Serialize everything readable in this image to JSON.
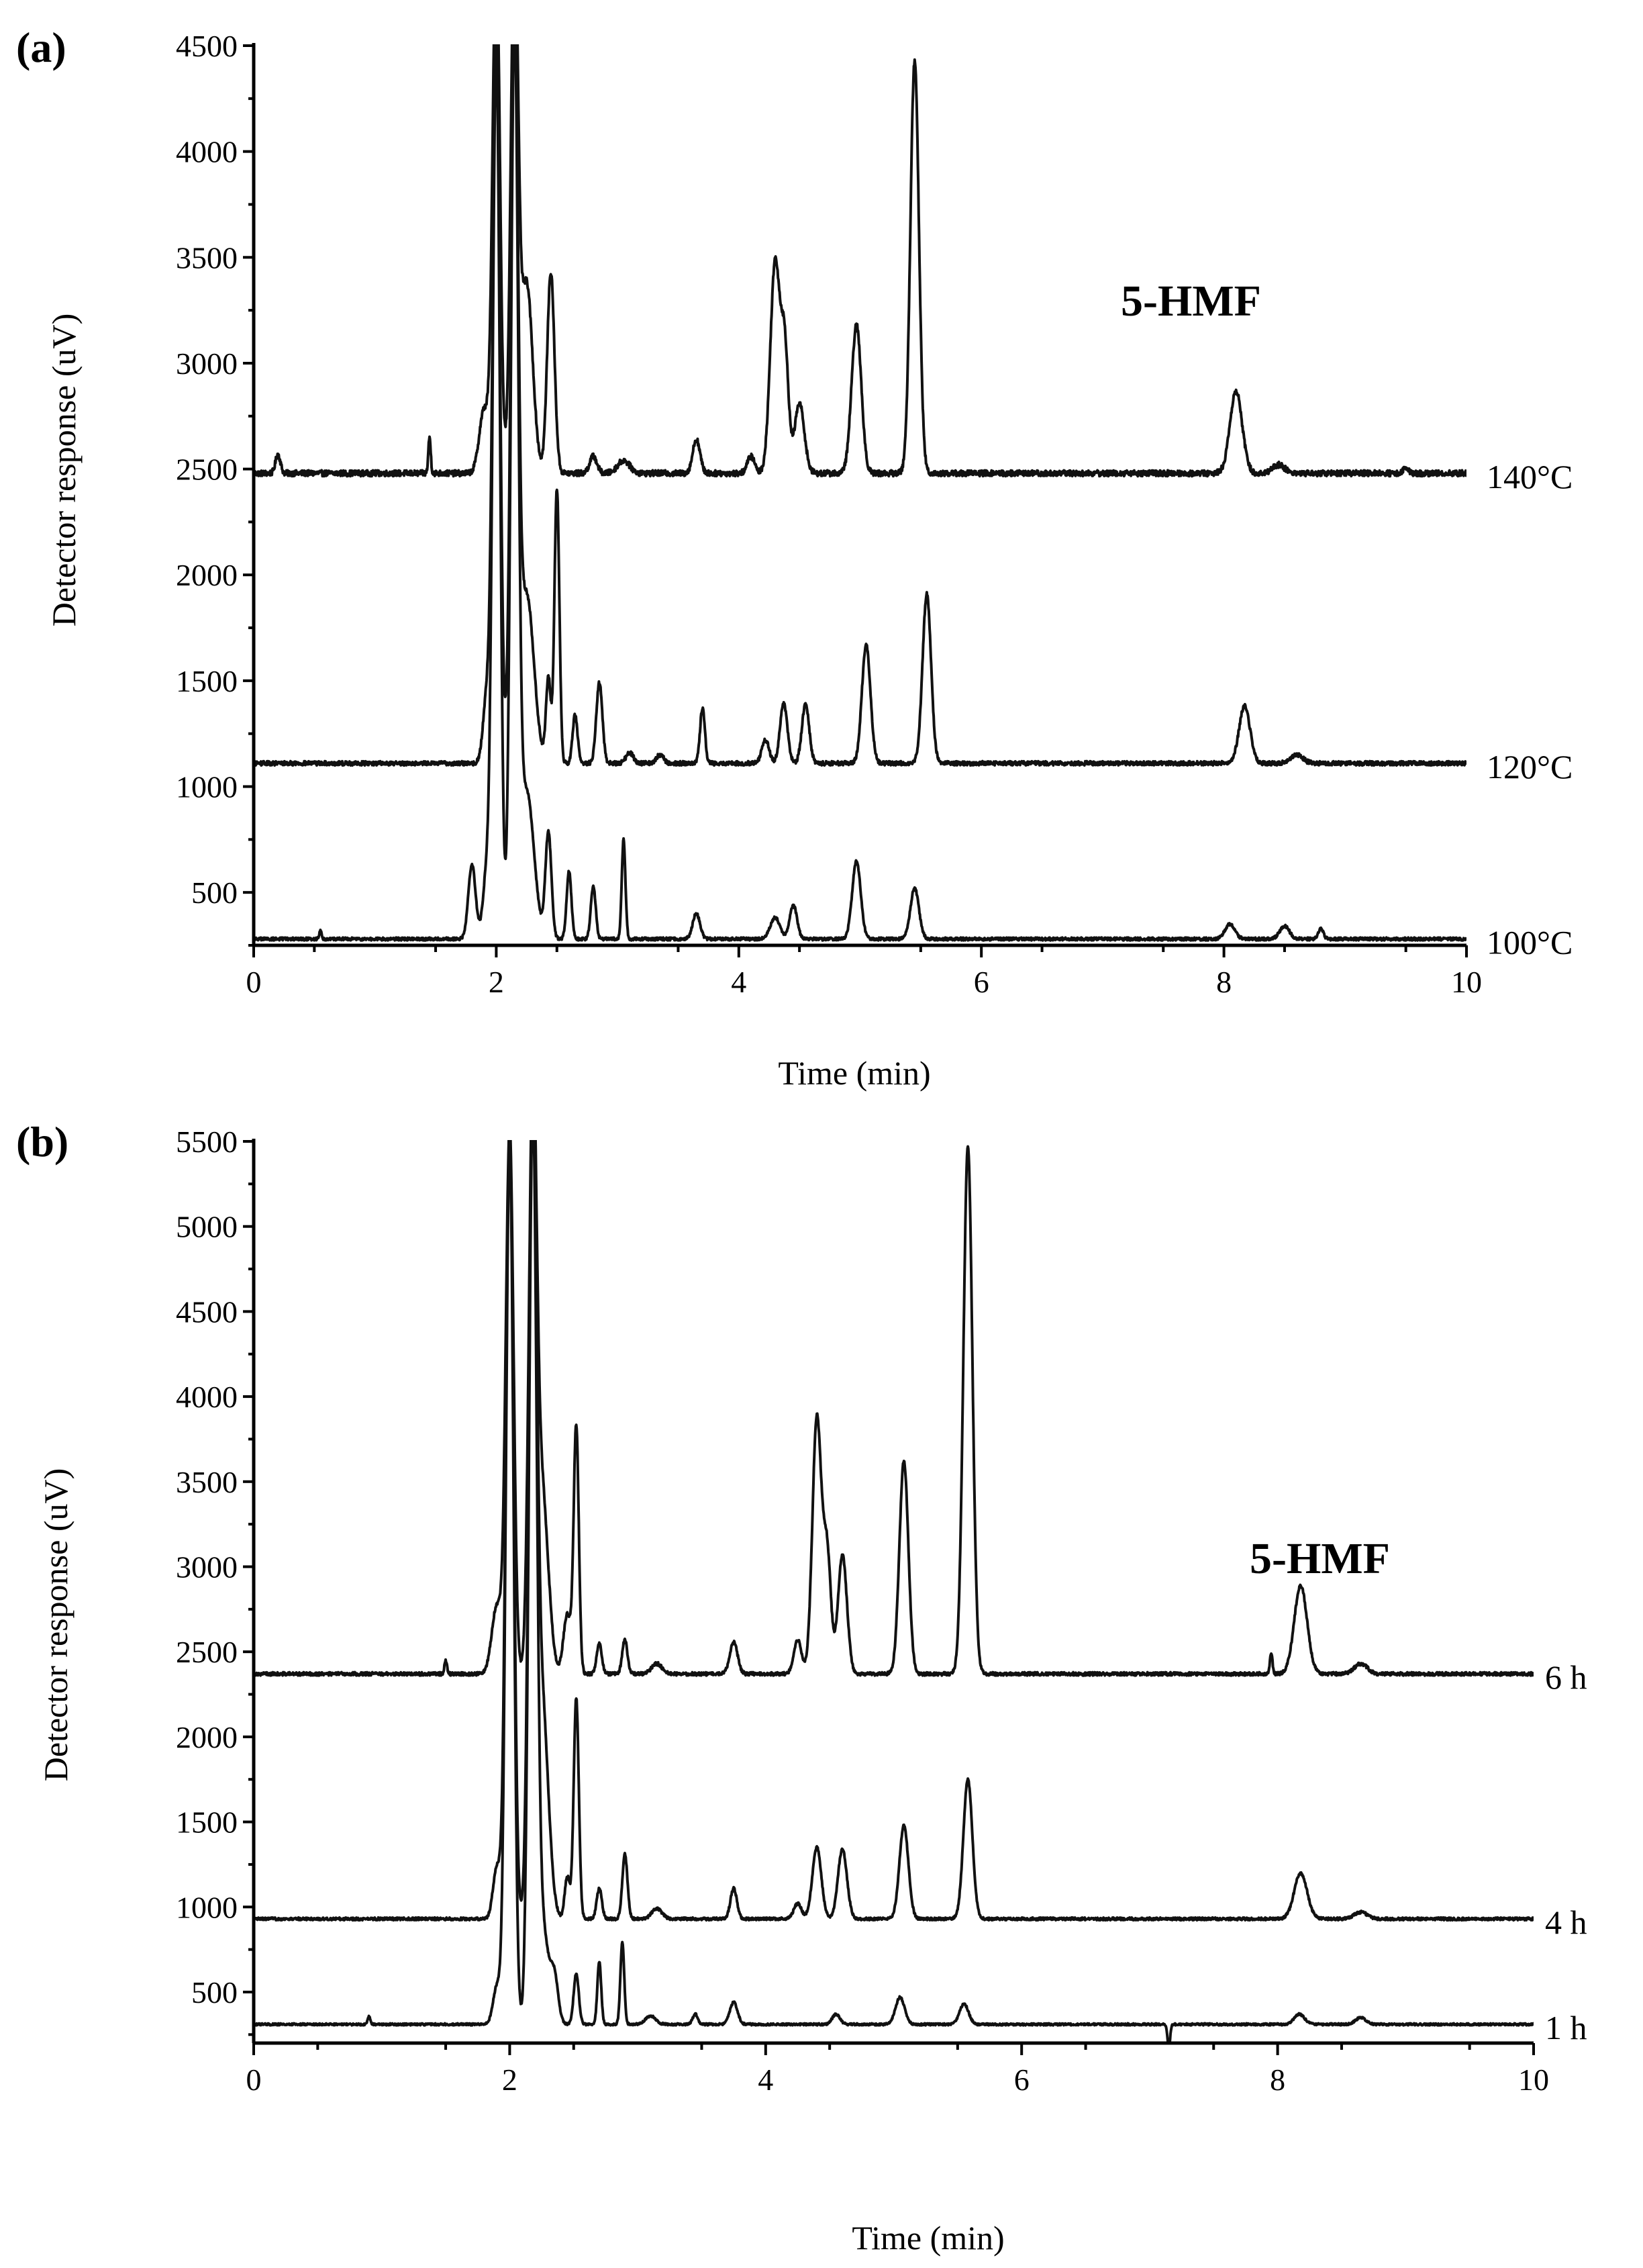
{
  "figure": {
    "panels": [
      {
        "label": "(a)",
        "annotation": "5-HMF"
      },
      {
        "label": "(b)",
        "annotation": "5-HMF"
      }
    ]
  },
  "chart_data": [
    {
      "type": "line",
      "panel": "(a)",
      "xlabel": "Time (min)",
      "ylabel": "Detector response (uV)",
      "xlim": [
        0,
        10
      ],
      "ylim": [
        250,
        4500
      ],
      "x_ticks": [
        0,
        2,
        4,
        6,
        8,
        10
      ],
      "y_ticks": [
        500,
        1000,
        1500,
        2000,
        2500,
        3000,
        3500,
        4000,
        4500
      ],
      "annotation": "5-HMF",
      "series": [
        {
          "name": "140°C",
          "baseline": 2480,
          "noise": 14,
          "peaks": [
            [
              0.2,
              90,
              0.02
            ],
            [
              1.45,
              170,
              0.01
            ],
            [
              1.9,
              300,
              0.04
            ],
            [
              2.0,
              2500,
              0.03
            ],
            [
              2.15,
              2500,
              0.03
            ],
            [
              2.25,
              900,
              0.05
            ],
            [
              2.45,
              950,
              0.03
            ],
            [
              2.8,
              80,
              0.03
            ],
            [
              3.05,
              60,
              0.05
            ],
            [
              3.65,
              160,
              0.03
            ],
            [
              4.1,
              80,
              0.03
            ],
            [
              4.3,
              1000,
              0.04
            ],
            [
              4.38,
              550,
              0.03
            ],
            [
              4.5,
              330,
              0.04
            ],
            [
              4.97,
              700,
              0.04
            ],
            [
              5.45,
              1950,
              0.035
            ],
            [
              8.1,
              390,
              0.05
            ],
            [
              8.45,
              40,
              0.05
            ],
            [
              9.5,
              30,
              0.02
            ]
          ]
        },
        {
          "name": "120°C",
          "baseline": 1110,
          "noise": 10,
          "peaks": [
            [
              1.92,
              300,
              0.03
            ],
            [
              2.0,
              3400,
              0.03
            ],
            [
              2.15,
              3400,
              0.03
            ],
            [
              2.25,
              800,
              0.06
            ],
            [
              2.43,
              400,
              0.02
            ],
            [
              2.5,
              1300,
              0.02
            ],
            [
              2.65,
              230,
              0.02
            ],
            [
              2.85,
              380,
              0.025
            ],
            [
              3.1,
              50,
              0.03
            ],
            [
              3.35,
              40,
              0.03
            ],
            [
              3.7,
              260,
              0.02
            ],
            [
              4.22,
              110,
              0.03
            ],
            [
              4.37,
              280,
              0.03
            ],
            [
              4.55,
              280,
              0.03
            ],
            [
              5.05,
              560,
              0.035
            ],
            [
              5.55,
              800,
              0.035
            ],
            [
              8.17,
              270,
              0.045
            ],
            [
              8.6,
              40,
              0.05
            ]
          ]
        },
        {
          "name": "100°C",
          "baseline": 280,
          "noise": 7,
          "peaks": [
            [
              0.55,
              40,
              0.01
            ],
            [
              1.8,
              350,
              0.03
            ],
            [
              1.92,
              300,
              0.03
            ],
            [
              2.0,
              4200,
              0.03
            ],
            [
              2.15,
              4200,
              0.03
            ],
            [
              2.25,
              700,
              0.06
            ],
            [
              2.43,
              500,
              0.025
            ],
            [
              2.6,
              320,
              0.02
            ],
            [
              2.8,
              250,
              0.02
            ],
            [
              3.05,
              470,
              0.015
            ],
            [
              3.65,
              120,
              0.03
            ],
            [
              4.3,
              100,
              0.04
            ],
            [
              4.45,
              160,
              0.03
            ],
            [
              4.97,
              370,
              0.035
            ],
            [
              5.45,
              240,
              0.035
            ],
            [
              8.05,
              70,
              0.04
            ],
            [
              8.5,
              60,
              0.04
            ],
            [
              8.8,
              50,
              0.02
            ]
          ]
        }
      ]
    },
    {
      "type": "line",
      "panel": "(b)",
      "xlabel": "Time (min)",
      "ylabel": "Detector response (uV)",
      "xlim": [
        0,
        10
      ],
      "ylim": [
        200,
        5500
      ],
      "x_ticks": [
        0,
        2,
        4,
        6,
        8,
        10
      ],
      "y_ticks": [
        500,
        1000,
        1500,
        2000,
        2500,
        3000,
        3500,
        4000,
        4500,
        5000,
        5500
      ],
      "annotation": "5-HMF",
      "series": [
        {
          "name": "6 h",
          "baseline": 2370,
          "noise": 10,
          "peaks": [
            [
              1.5,
              80,
              0.01
            ],
            [
              1.9,
              400,
              0.04
            ],
            [
              2.0,
              3200,
              0.03
            ],
            [
              2.18,
              3200,
              0.03
            ],
            [
              2.25,
              1100,
              0.05
            ],
            [
              2.45,
              350,
              0.03
            ],
            [
              2.52,
              1450,
              0.02
            ],
            [
              2.7,
              180,
              0.02
            ],
            [
              2.9,
              200,
              0.02
            ],
            [
              3.15,
              60,
              0.04
            ],
            [
              3.75,
              190,
              0.03
            ],
            [
              4.25,
              200,
              0.03
            ],
            [
              4.4,
              1500,
              0.035
            ],
            [
              4.48,
              700,
              0.03
            ],
            [
              4.6,
              700,
              0.035
            ],
            [
              5.08,
              1250,
              0.035
            ],
            [
              5.58,
              3100,
              0.035
            ],
            [
              7.95,
              120,
              0.01
            ],
            [
              8.18,
              520,
              0.05
            ],
            [
              8.65,
              60,
              0.05
            ]
          ]
        },
        {
          "name": "4 h",
          "baseline": 930,
          "noise": 8,
          "peaks": [
            [
              1.9,
              300,
              0.03
            ],
            [
              2.0,
              4600,
              0.03
            ],
            [
              2.18,
              4600,
              0.03
            ],
            [
              2.25,
              1300,
              0.05
            ],
            [
              2.45,
              250,
              0.02
            ],
            [
              2.52,
              1300,
              0.02
            ],
            [
              2.7,
              180,
              0.02
            ],
            [
              2.9,
              380,
              0.02
            ],
            [
              3.15,
              60,
              0.04
            ],
            [
              3.75,
              180,
              0.025
            ],
            [
              4.25,
              90,
              0.03
            ],
            [
              4.4,
              420,
              0.035
            ],
            [
              4.6,
              410,
              0.035
            ],
            [
              5.08,
              550,
              0.035
            ],
            [
              5.58,
              820,
              0.035
            ],
            [
              8.18,
              270,
              0.05
            ],
            [
              8.65,
              40,
              0.05
            ]
          ]
        },
        {
          "name": "1 h",
          "baseline": 310,
          "noise": 6,
          "peaks": [
            [
              0.9,
              50,
              0.01
            ],
            [
              1.9,
              220,
              0.03
            ],
            [
              2.0,
              5200,
              0.03
            ],
            [
              2.18,
              5200,
              0.03
            ],
            [
              2.25,
              600,
              0.05
            ],
            [
              2.35,
              250,
              0.03
            ],
            [
              2.52,
              300,
              0.02
            ],
            [
              2.7,
              370,
              0.015
            ],
            [
              2.88,
              480,
              0.015
            ],
            [
              3.1,
              50,
              0.04
            ],
            [
              3.45,
              60,
              0.02
            ],
            [
              3.75,
              130,
              0.03
            ],
            [
              4.55,
              60,
              0.03
            ],
            [
              5.05,
              160,
              0.035
            ],
            [
              5.55,
              120,
              0.035
            ],
            [
              7.15,
              -140,
              0.01
            ],
            [
              8.17,
              60,
              0.04
            ],
            [
              8.65,
              40,
              0.04
            ]
          ]
        }
      ]
    }
  ]
}
